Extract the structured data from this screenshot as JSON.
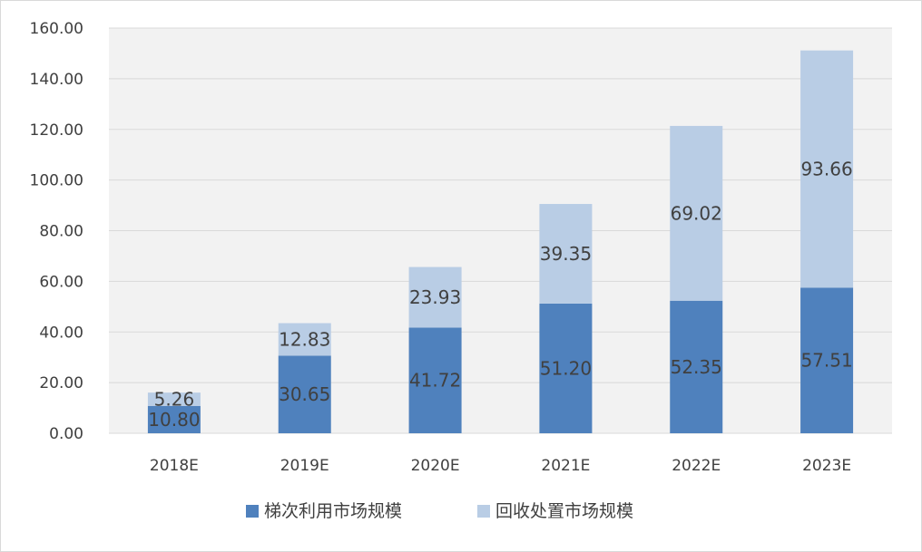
{
  "chart_data": {
    "type": "bar",
    "stacked": true,
    "title": "",
    "xlabel": "",
    "ylabel": "",
    "categories": [
      "2018E",
      "2019E",
      "2020E",
      "2021E",
      "2022E",
      "2023E"
    ],
    "series": [
      {
        "name": "梯次利用市场规模",
        "color": "#4f81bd",
        "values": [
          10.8,
          30.65,
          41.72,
          51.2,
          52.35,
          57.51
        ],
        "labels": [
          "10.80",
          "30.65",
          "41.72",
          "51.20",
          "52.35",
          "57.51"
        ]
      },
      {
        "name": "回收处置市场规模",
        "color": "#b9cde5",
        "values": [
          5.26,
          12.83,
          23.93,
          39.35,
          69.02,
          93.66
        ],
        "labels": [
          "5.26",
          "12.83",
          "23.93",
          "39.35",
          "69.02",
          "93.66"
        ]
      }
    ],
    "ylim": [
      0,
      160
    ],
    "yticks": [
      0,
      20,
      40,
      60,
      80,
      100,
      120,
      140,
      160
    ],
    "ytick_labels": [
      "0.00",
      "20.00",
      "40.00",
      "60.00",
      "80.00",
      "100.00",
      "120.00",
      "140.00",
      "160.00"
    ],
    "grid": true,
    "gridline_color": "#d9d9d9",
    "plot_background": "#f2f2f2",
    "legend_position": "bottom"
  }
}
